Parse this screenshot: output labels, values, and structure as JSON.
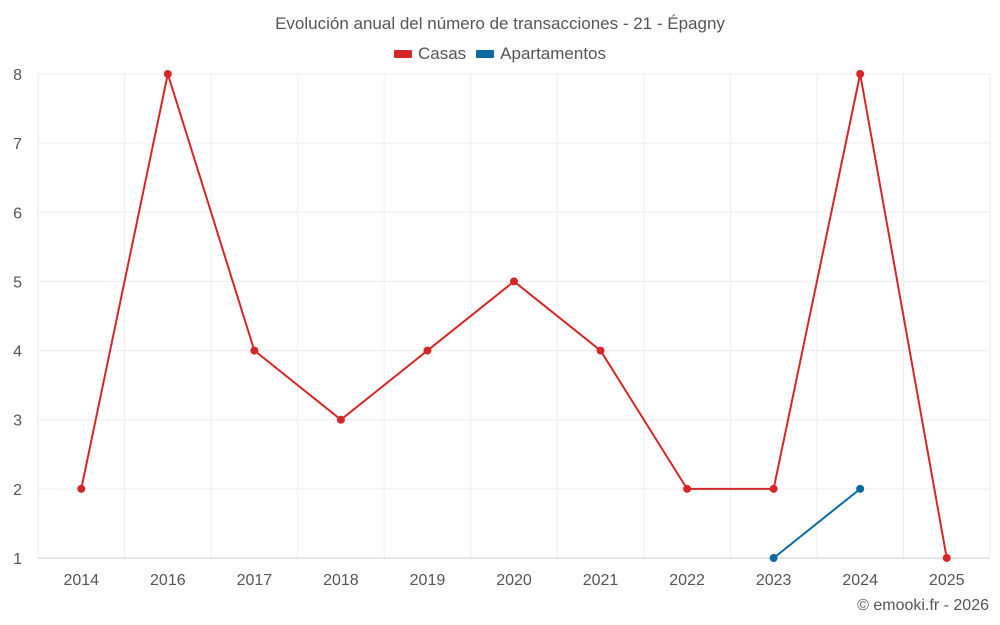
{
  "title": "Evolución anual del número de transacciones - 21 - Épagny",
  "copyright": "© emooki.fr - 2026",
  "chart_data": {
    "type": "line",
    "title": "Evolución anual del número de transacciones - 21 - Épagny",
    "xlabel": "",
    "ylabel": "",
    "categories": [
      "2014",
      "2016",
      "2017",
      "2018",
      "2019",
      "2020",
      "2021",
      "2022",
      "2023",
      "2024",
      "2025"
    ],
    "ylim": [
      1,
      8
    ],
    "yticks": [
      1,
      2,
      3,
      4,
      5,
      6,
      7,
      8
    ],
    "grid": true,
    "legend_position": "top-center",
    "series": [
      {
        "name": "Casas",
        "color": "#d62728",
        "values": [
          2,
          8,
          4,
          3,
          4,
          5,
          4,
          2,
          2,
          8,
          1
        ]
      },
      {
        "name": "Apartamentos",
        "color": "#0a6aa1",
        "values": [
          null,
          null,
          null,
          null,
          null,
          null,
          null,
          null,
          1,
          2,
          null
        ]
      }
    ]
  }
}
